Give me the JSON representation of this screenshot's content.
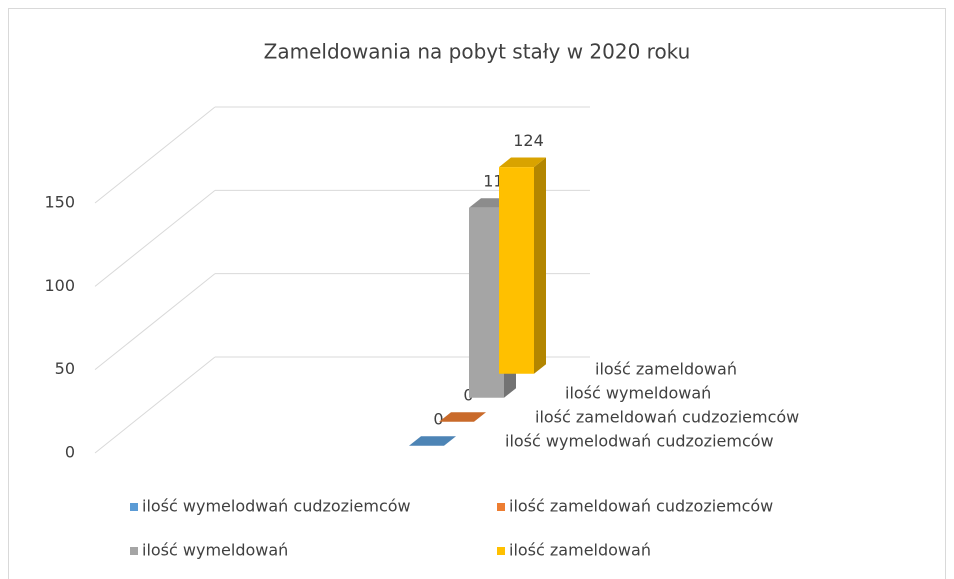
{
  "chart_data": {
    "type": "bar3d",
    "title": "Zameldowania na pobyt stały w 2020 roku",
    "series": [
      {
        "name": "ilość wymelodwań cudzoziemców",
        "color": "#5b9bd5",
        "values": [
          0
        ]
      },
      {
        "name": "ilość zameldowań cudzoziemców",
        "color": "#ed7d31",
        "values": [
          0
        ]
      },
      {
        "name": "ilość wymeldowań",
        "color": "#a5a5a5",
        "values": [
          114
        ]
      },
      {
        "name": "ilość zameldowań",
        "color": "#ffc000",
        "values": [
          124
        ]
      }
    ],
    "ylim": [
      0,
      150
    ],
    "yticks": [
      0,
      50,
      100,
      150
    ],
    "grid": true,
    "legend": "bottom"
  }
}
